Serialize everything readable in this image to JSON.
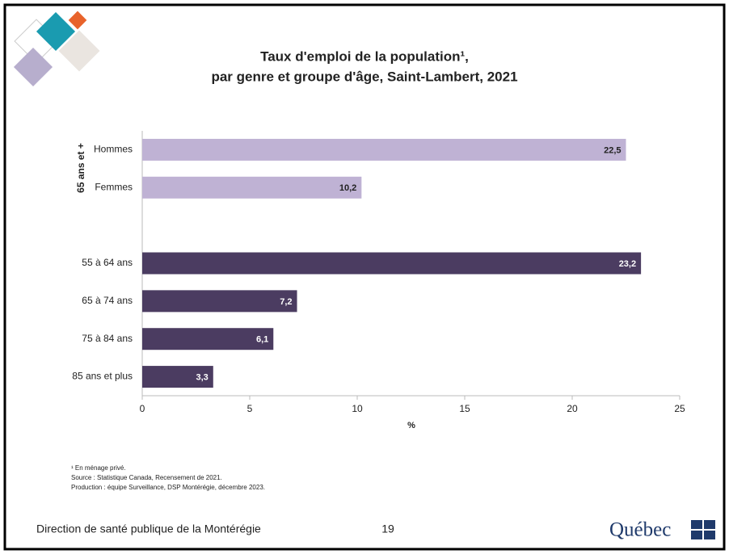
{
  "chart_data": {
    "type": "hbar",
    "title": [
      "Taux d'emploi de la population¹,",
      "par genre et groupe d'âge, Saint-Lambert, 2021"
    ],
    "group_label": "65 ans et +",
    "categories": [
      "Hommes",
      "Femmes",
      null,
      "55 à 64 ans",
      "65 à 74 ans",
      "75 à 84 ans",
      "85 ans et plus"
    ],
    "values": [
      22.5,
      10.2,
      null,
      23.2,
      7.2,
      6.1,
      3.3
    ],
    "value_labels": [
      "22,5",
      "10,2",
      null,
      "23,2",
      "7,2",
      "6,1",
      "3,3"
    ],
    "colors": [
      "#bfb2d4",
      "#bfb2d4",
      null,
      "#4b3c61",
      "#4b3c61",
      "#4b3c61",
      "#4b3c61"
    ],
    "xlim": [
      0,
      25
    ],
    "xticks": [
      0,
      5,
      10,
      15,
      20,
      25
    ],
    "x_label": "%",
    "notes": [
      "¹ En ménage privé.",
      "Source : Statistique Canada, Recensement de 2021.",
      "Production : équipe Surveillance, DSP Montérégie, décembre 2023."
    ]
  },
  "footer": {
    "organization": "Direction de santé publique de la Montérégie",
    "page": "19",
    "logo": "Québec"
  }
}
